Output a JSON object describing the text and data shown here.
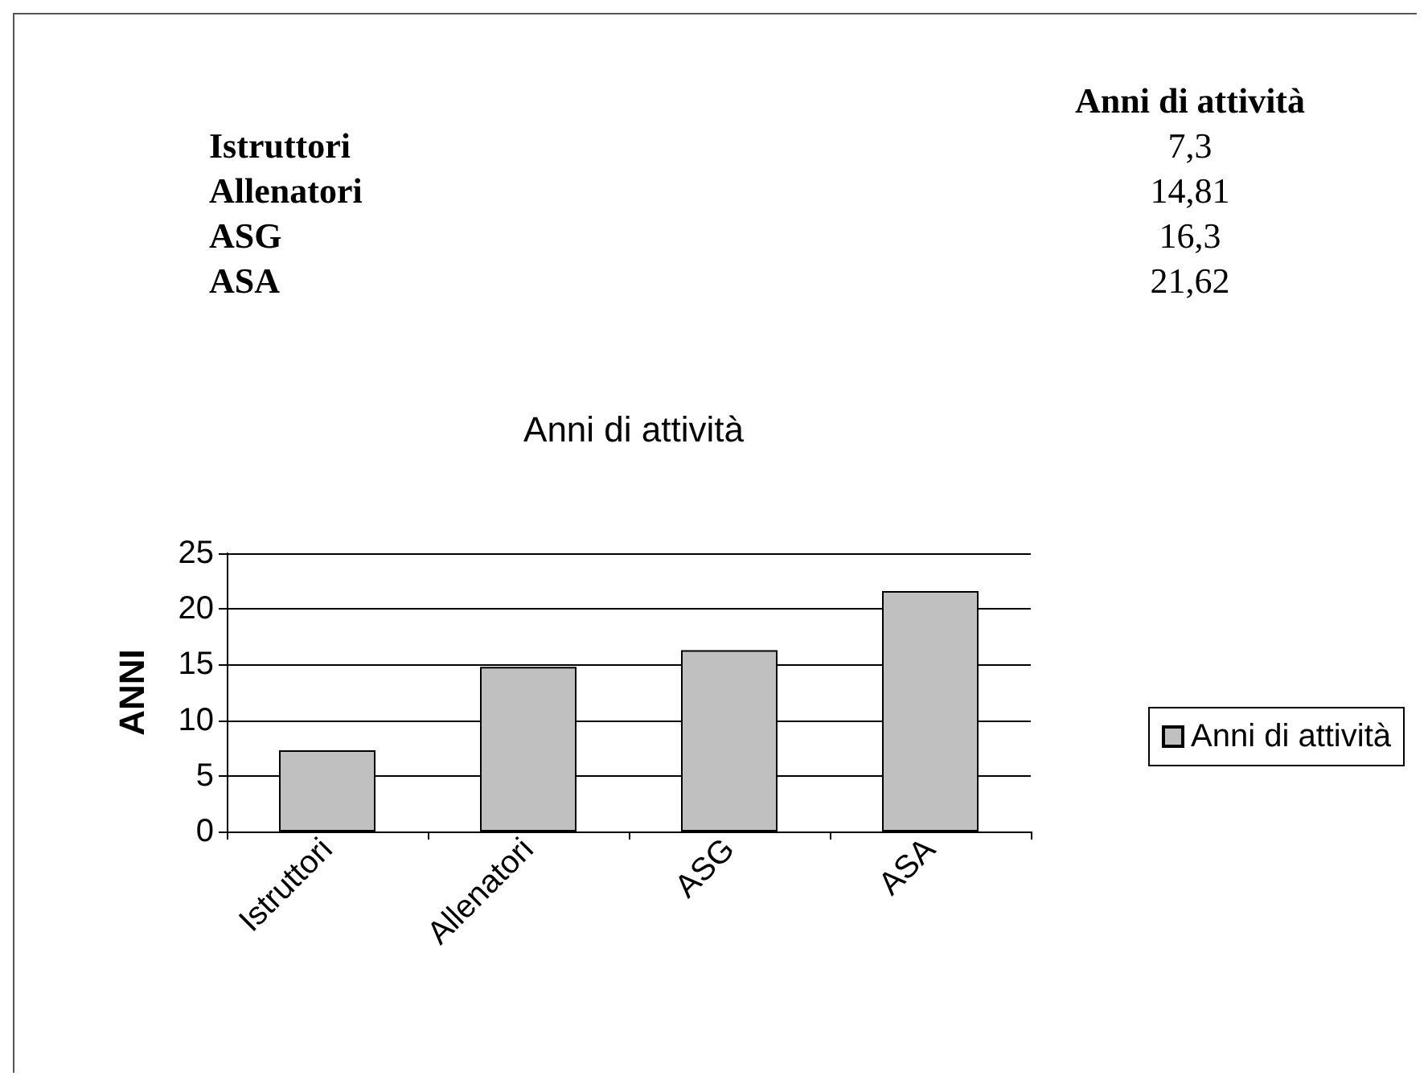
{
  "chart_data": [
    {
      "type": "other",
      "title": "Anni di attività",
      "annotations": [
        "Istruttori",
        "7,3",
        "Allenatori",
        "14,81",
        "ASG",
        "16,3",
        "ASA",
        "21,62"
      ]
    },
    {
      "type": "bar",
      "title": "Anni di attività",
      "ylabel": "ANNI",
      "categories": [
        "Istruttori",
        "Allenatori",
        "ASG",
        "ASA"
      ],
      "series": [
        {
          "name": "Anni di attività",
          "color": "#c0c0c0",
          "values": [
            7.3,
            14.8,
            16.3,
            21.6
          ]
        }
      ],
      "ylim": [
        0,
        25
      ],
      "yticks": [
        0,
        5,
        10,
        15,
        20,
        25
      ],
      "grid": "y",
      "legend": "right"
    }
  ]
}
